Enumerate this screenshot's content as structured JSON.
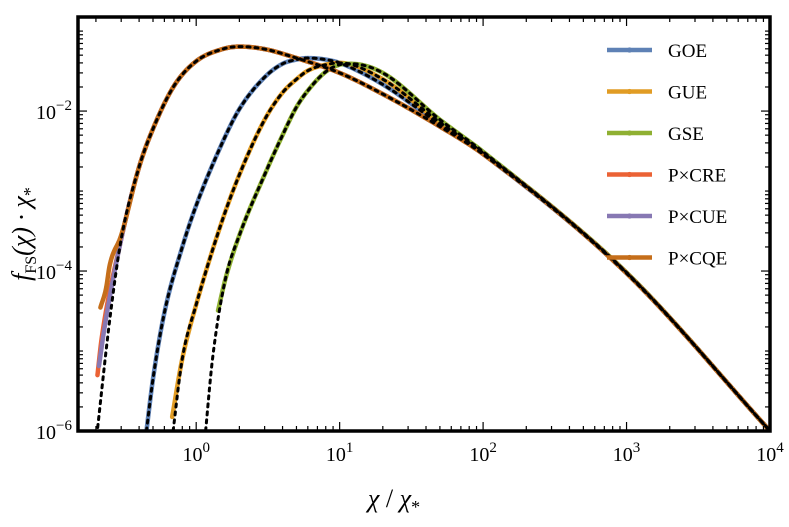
{
  "chart_data": {
    "type": "line",
    "scale": {
      "x": "log",
      "y": "log"
    },
    "xlim": [
      0.15,
      10000
    ],
    "ylim": [
      1e-06,
      0.15
    ],
    "x_ticks": [
      {
        "value": 1,
        "base": "10",
        "exp": "0"
      },
      {
        "value": 10,
        "base": "10",
        "exp": "1"
      },
      {
        "value": 100,
        "base": "10",
        "exp": "2"
      },
      {
        "value": 1000,
        "base": "10",
        "exp": "3"
      },
      {
        "value": 10000,
        "base": "10",
        "exp": "4"
      }
    ],
    "y_ticks": [
      {
        "value": 1e-06,
        "base": "10",
        "exp": "−6"
      },
      {
        "value": 0.0001,
        "base": "10",
        "exp": "−4"
      },
      {
        "value": 0.01,
        "base": "10",
        "exp": "−2"
      }
    ],
    "xlabel": {
      "chi": "χ",
      "sep": " / ",
      "chi_star": "χ",
      "star": "*"
    },
    "ylabel": {
      "f": "f",
      "sub": "FS",
      "paren": "(χ) · χ",
      "star": "*"
    },
    "legend_position": "top-right",
    "series": [
      {
        "name": "GOE",
        "color": "#5E81B5",
        "points": [
          [
            0.45,
            1e-06
          ],
          [
            0.5,
            4.5e-06
          ],
          [
            0.6,
            3e-05
          ],
          [
            0.8,
            0.0002
          ],
          [
            1,
            0.00066
          ],
          [
            1.5,
            0.0038
          ],
          [
            2,
            0.0106
          ],
          [
            3,
            0.0265
          ],
          [
            4,
            0.039
          ],
          [
            5,
            0.044
          ],
          [
            6,
            0.046
          ],
          [
            8,
            0.044
          ],
          [
            10,
            0.04
          ],
          [
            20,
            0.0215
          ],
          [
            50,
            0.0068
          ],
          [
            100,
            0.0029
          ],
          [
            1000,
            9.4e-05
          ],
          [
            10000,
            1e-06
          ]
        ]
      },
      {
        "name": "GUE",
        "color": "#E19C24",
        "points": [
          [
            0.68,
            1.5e-06
          ],
          [
            0.8,
            8e-06
          ],
          [
            1,
            3.8e-05
          ],
          [
            1.5,
            0.0004
          ],
          [
            2,
            0.0016
          ],
          [
            3,
            0.0078
          ],
          [
            4,
            0.017
          ],
          [
            5,
            0.025
          ],
          [
            6,
            0.032
          ],
          [
            8,
            0.038
          ],
          [
            10,
            0.04
          ],
          [
            20,
            0.025
          ],
          [
            50,
            0.0072
          ],
          [
            100,
            0.003
          ],
          [
            1000,
            9.5e-05
          ],
          [
            10000,
            1e-06
          ]
        ]
      },
      {
        "name": "GSE",
        "color": "#8FB032",
        "points": [
          [
            1.42,
            3.2e-05
          ],
          [
            1.6,
            8e-05
          ],
          [
            2,
            0.00028
          ],
          [
            3,
            0.0016
          ],
          [
            4,
            0.005
          ],
          [
            5,
            0.0112
          ],
          [
            6,
            0.018
          ],
          [
            8,
            0.031
          ],
          [
            10,
            0.038
          ],
          [
            12,
            0.039
          ],
          [
            20,
            0.03
          ],
          [
            50,
            0.0078
          ],
          [
            100,
            0.0031
          ],
          [
            1000,
            9.6e-05
          ],
          [
            10000,
            1e-06
          ]
        ]
      },
      {
        "name": "P×CRE",
        "color": "#EB6235",
        "points": [
          [
            0.205,
            5e-06
          ],
          [
            0.22,
            1.5e-05
          ],
          [
            0.3,
            0.00025
          ],
          [
            0.4,
            0.002
          ],
          [
            0.5,
            0.006
          ],
          [
            0.7,
            0.0206
          ],
          [
            1,
            0.042
          ],
          [
            1.5,
            0.059
          ],
          [
            2,
            0.064
          ],
          [
            3,
            0.0595
          ],
          [
            5,
            0.046
          ],
          [
            10,
            0.03
          ],
          [
            20,
            0.0163
          ],
          [
            50,
            0.0064
          ],
          [
            100,
            0.0029
          ],
          [
            1000,
            9.4e-05
          ],
          [
            10000,
            1e-06
          ]
        ]
      },
      {
        "name": "P×CUE",
        "color": "#8778B3",
        "points": [
          [
            0.21,
            6.5e-06
          ],
          [
            0.23,
            2e-05
          ],
          [
            0.3,
            0.00025
          ],
          [
            0.4,
            0.002
          ],
          [
            0.5,
            0.006
          ],
          [
            0.7,
            0.0206
          ],
          [
            1,
            0.042
          ],
          [
            1.5,
            0.059
          ],
          [
            2,
            0.064
          ],
          [
            3,
            0.0595
          ],
          [
            5,
            0.046
          ],
          [
            10,
            0.03
          ],
          [
            20,
            0.0163
          ],
          [
            50,
            0.0064
          ],
          [
            100,
            0.0029
          ],
          [
            1000,
            9.4e-05
          ],
          [
            10000,
            1e-06
          ]
        ]
      },
      {
        "name": "P×CQE",
        "color": "#C56E1A",
        "points": [
          [
            0.215,
            3.5e-05
          ],
          [
            0.235,
            6e-05
          ],
          [
            0.25,
            0.00012
          ],
          [
            0.3,
            0.00028
          ],
          [
            0.4,
            0.002
          ],
          [
            0.5,
            0.006
          ],
          [
            0.7,
            0.0206
          ],
          [
            1,
            0.042
          ],
          [
            1.5,
            0.059
          ],
          [
            2,
            0.064
          ],
          [
            3,
            0.0595
          ],
          [
            5,
            0.046
          ],
          [
            10,
            0.03
          ],
          [
            20,
            0.0163
          ],
          [
            50,
            0.0064
          ],
          [
            100,
            0.0029
          ],
          [
            1000,
            9.4e-05
          ],
          [
            10000,
            1e-06
          ]
        ]
      }
    ],
    "reference_curves": [
      {
        "style": "dotted",
        "color": "#000000",
        "points": [
          [
            0.2,
            7e-07
          ],
          [
            0.25,
            2.5e-05
          ],
          [
            0.3,
            0.00025
          ],
          [
            0.4,
            0.002
          ],
          [
            0.5,
            0.006
          ],
          [
            0.7,
            0.0206
          ],
          [
            1,
            0.042
          ],
          [
            1.5,
            0.059
          ],
          [
            2,
            0.064
          ],
          [
            3,
            0.0595
          ],
          [
            5,
            0.046
          ],
          [
            10,
            0.03
          ],
          [
            20,
            0.0163
          ],
          [
            50,
            0.0064
          ],
          [
            100,
            0.0029
          ],
          [
            1000,
            9.4e-05
          ],
          [
            10000,
            1e-06
          ]
        ]
      },
      {
        "style": "dotted",
        "color": "#000000",
        "points": [
          [
            0.45,
            1e-06
          ],
          [
            0.5,
            4.5e-06
          ],
          [
            0.6,
            3e-05
          ],
          [
            0.8,
            0.0002
          ],
          [
            1,
            0.00066
          ],
          [
            1.5,
            0.0038
          ],
          [
            2,
            0.0106
          ],
          [
            3,
            0.0265
          ],
          [
            4,
            0.039
          ],
          [
            5,
            0.044
          ],
          [
            6,
            0.046
          ],
          [
            8,
            0.044
          ],
          [
            10,
            0.04
          ],
          [
            20,
            0.0215
          ],
          [
            50,
            0.0068
          ],
          [
            100,
            0.0029
          ],
          [
            1000,
            9.4e-05
          ],
          [
            10000,
            1e-06
          ]
        ]
      },
      {
        "style": "dotted",
        "color": "#000000",
        "points": [
          [
            0.68,
            8e-07
          ],
          [
            0.8,
            8e-06
          ],
          [
            1,
            3.8e-05
          ],
          [
            1.5,
            0.0004
          ],
          [
            2,
            0.0016
          ],
          [
            3,
            0.0078
          ],
          [
            4,
            0.017
          ],
          [
            5,
            0.025
          ],
          [
            6,
            0.032
          ],
          [
            8,
            0.038
          ],
          [
            10,
            0.04
          ],
          [
            20,
            0.025
          ],
          [
            50,
            0.0072
          ],
          [
            100,
            0.003
          ],
          [
            1000,
            9.5e-05
          ],
          [
            10000,
            1e-06
          ]
        ]
      },
      {
        "style": "dotted",
        "color": "#000000",
        "points": [
          [
            1.15,
            8e-07
          ],
          [
            1.3,
            8e-06
          ],
          [
            1.6,
            8e-05
          ],
          [
            2,
            0.00028
          ],
          [
            3,
            0.0016
          ],
          [
            4,
            0.005
          ],
          [
            5,
            0.0112
          ],
          [
            6,
            0.018
          ],
          [
            8,
            0.031
          ],
          [
            10,
            0.038
          ],
          [
            12,
            0.039
          ],
          [
            20,
            0.03
          ],
          [
            50,
            0.0078
          ],
          [
            100,
            0.0031
          ],
          [
            1000,
            9.6e-05
          ],
          [
            10000,
            1e-06
          ]
        ]
      }
    ]
  }
}
